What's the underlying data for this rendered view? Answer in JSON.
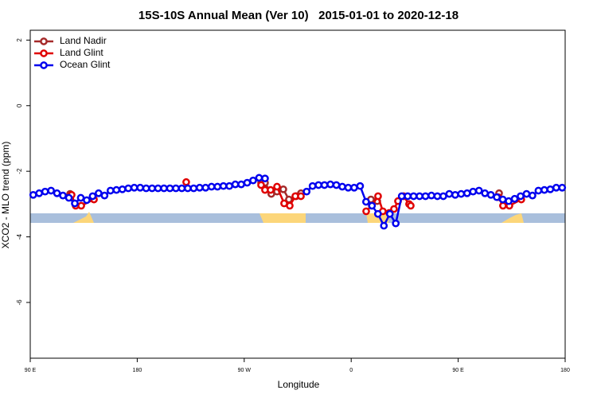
{
  "chart_data": {
    "type": "line",
    "title": "15S-10S Annual Mean (Ver 10)   2015-01-01 to 2020-12-18",
    "xlabel": "Longitude",
    "ylabel": "XCO2 - MLO trend (ppm)",
    "xlim": [
      90,
      540
    ],
    "xticks": [
      {
        "value": 90,
        "label": "90 E"
      },
      180,
      {
        "value": 270,
        "label": "90 W"
      },
      {
        "value": 360,
        "label": "0"
      },
      {
        "value": 450,
        "label": "90 E"
      },
      {
        "value": 540,
        "label": "180"
      }
    ],
    "ylim": [
      -7.7,
      2.3
    ],
    "yticks": [
      2,
      0,
      -2,
      -4,
      -6
    ],
    "legend": "top-left",
    "series": [
      {
        "name": "Land Nadir",
        "color": "#a52a2a",
        "x": [
          123.5,
          284.2,
          287.5,
          292.8,
          297.6,
          302.9,
          307.6,
          313.7,
          317.7,
          376.6,
          381.9,
          484.4
        ],
        "values": [
          -2.69,
          -2.35,
          -2.35,
          -2.69,
          -2.62,
          -2.55,
          -2.86,
          -2.76,
          -2.67,
          -2.86,
          -2.91,
          -2.67
        ]
      },
      {
        "name": "Land Glint",
        "color": "#e00000",
        "x": [
          124.8,
          128.2,
          132.9,
          143.6,
          221.2,
          284.2,
          287.5,
          292.2,
          297.6,
          303.6,
          308.3,
          313.0,
          317.7,
          372.6,
          377.3,
          382.6,
          386.6,
          392.0,
          396.0,
          399.4,
          404.0,
          408.7,
          410.1,
          483.7,
          487.7,
          493.1,
          503.1
        ],
        "values": [
          -2.72,
          -3.05,
          -3.05,
          -2.86,
          -2.33,
          -2.42,
          -2.57,
          -2.57,
          -2.47,
          -2.98,
          -3.05,
          -2.76,
          -2.76,
          -3.22,
          -3.05,
          -2.76,
          -3.22,
          -3.27,
          -3.15,
          -2.91,
          -2.76,
          -3.0,
          -3.05,
          -2.79,
          -3.05,
          -3.05,
          -2.86
        ]
      },
      {
        "name": "Ocean Glint",
        "color": "#0000ee",
        "x": [
          92.5,
          97.5,
          102.5,
          107.5,
          112.5,
          117.5,
          122.5,
          127.5,
          132.5,
          137.5,
          142.5,
          147.5,
          152.5,
          157.5,
          162.5,
          167.5,
          172.5,
          177.5,
          182.5,
          187.5,
          192.5,
          197.5,
          202.5,
          207.5,
          212.5,
          217.5,
          222.5,
          227.5,
          232.5,
          237.5,
          242.5,
          247.5,
          252.5,
          257.5,
          262.5,
          267.5,
          272.5,
          277.5,
          282.5,
          287.5,
          322.5,
          327.5,
          332.5,
          337.5,
          342.5,
          347.5,
          352.5,
          357.5,
          362.5,
          367.5,
          372.5,
          377.5,
          382.5,
          387.5,
          392.5,
          397.5,
          402.5,
          407.5,
          412.5,
          417.5,
          422.5,
          427.5,
          432.5,
          437.5,
          442.5,
          447.5,
          452.5,
          457.5,
          462.5,
          467.5,
          472.5,
          477.5,
          482.5,
          487.5,
          492.5,
          497.5,
          502.5,
          507.5,
          512.5,
          517.5,
          522.5,
          527.5,
          532.5,
          537.5
        ],
        "values": [
          -2.72,
          -2.67,
          -2.62,
          -2.59,
          -2.67,
          -2.74,
          -2.81,
          -2.98,
          -2.81,
          -2.88,
          -2.76,
          -2.67,
          -2.74,
          -2.59,
          -2.57,
          -2.55,
          -2.52,
          -2.5,
          -2.5,
          -2.52,
          -2.52,
          -2.52,
          -2.52,
          -2.52,
          -2.52,
          -2.52,
          -2.52,
          -2.52,
          -2.5,
          -2.5,
          -2.47,
          -2.47,
          -2.45,
          -2.45,
          -2.4,
          -2.4,
          -2.35,
          -2.28,
          -2.2,
          -2.22,
          -2.62,
          -2.45,
          -2.42,
          -2.42,
          -2.4,
          -2.42,
          -2.47,
          -2.5,
          -2.5,
          -2.45,
          -2.93,
          -3.05,
          -3.3,
          -3.66,
          -3.3,
          -3.59,
          -2.76,
          -2.76,
          -2.76,
          -2.76,
          -2.76,
          -2.74,
          -2.76,
          -2.76,
          -2.69,
          -2.72,
          -2.69,
          -2.67,
          -2.62,
          -2.59,
          -2.67,
          -2.72,
          -2.79,
          -2.86,
          -2.91,
          -2.84,
          -2.76,
          -2.69,
          -2.74,
          -2.59,
          -2.57,
          -2.55,
          -2.5,
          -2.5
        ]
      }
    ]
  }
}
